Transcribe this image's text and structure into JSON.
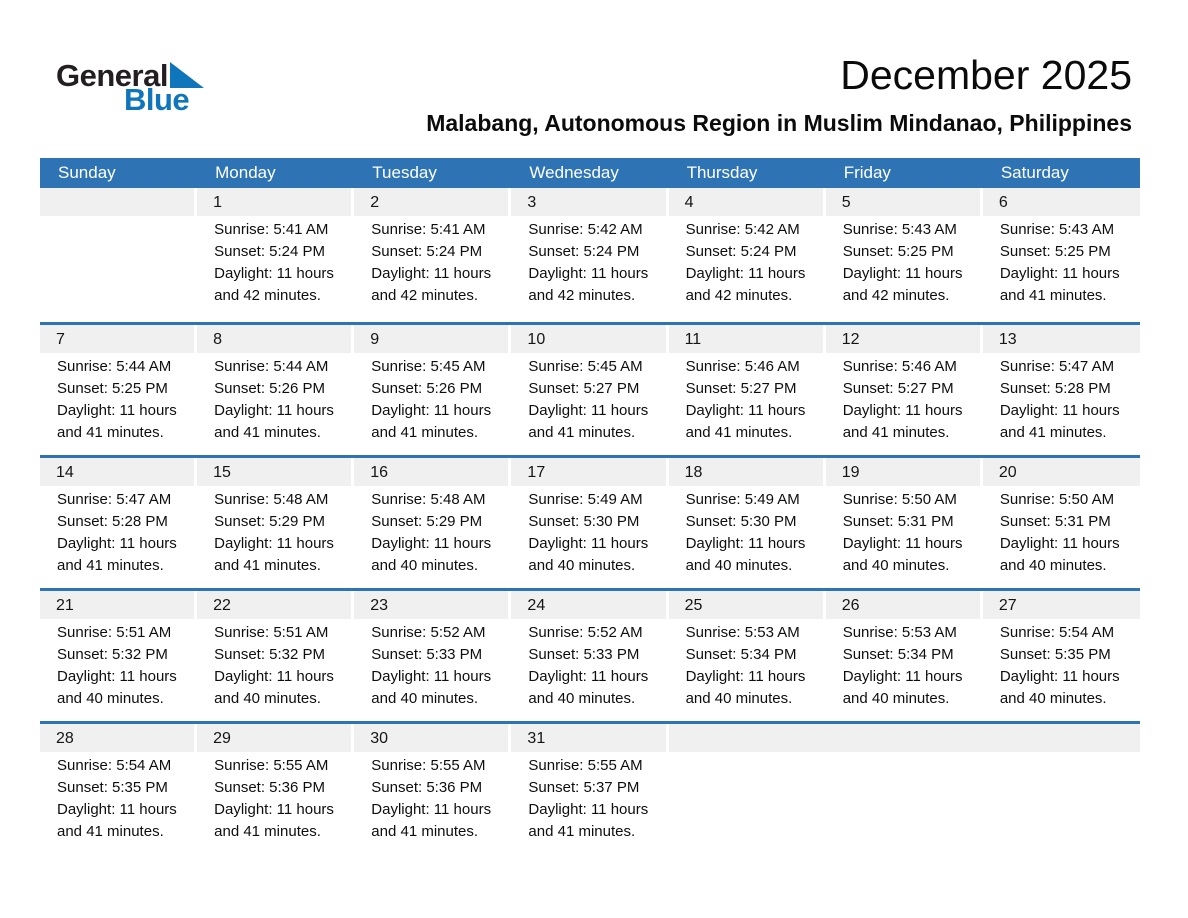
{
  "logo": {
    "general": "General",
    "blue": "Blue"
  },
  "title": "December 2025",
  "subtitle": "Malabang, Autonomous Region in Muslim Mindanao, Philippines",
  "day_headers": [
    "Sunday",
    "Monday",
    "Tuesday",
    "Wednesday",
    "Thursday",
    "Friday",
    "Saturday"
  ],
  "colors": {
    "header_blue": "#2E74B5",
    "band_gray": "#F0F0F0",
    "logo_blue": "#1076BC"
  },
  "weeks": [
    {
      "cells": [
        {
          "empty": true,
          "span": 1
        },
        {
          "date": "1",
          "lines": [
            "Sunrise: 5:41 AM",
            "Sunset: 5:24 PM",
            "Daylight: 11 hours",
            "and 42 minutes."
          ]
        },
        {
          "date": "2",
          "lines": [
            "Sunrise: 5:41 AM",
            "Sunset: 5:24 PM",
            "Daylight: 11 hours",
            "and 42 minutes."
          ]
        },
        {
          "date": "3",
          "lines": [
            "Sunrise: 5:42 AM",
            "Sunset: 5:24 PM",
            "Daylight: 11 hours",
            "and 42 minutes."
          ]
        },
        {
          "date": "4",
          "lines": [
            "Sunrise: 5:42 AM",
            "Sunset: 5:24 PM",
            "Daylight: 11 hours",
            "and 42 minutes."
          ]
        },
        {
          "date": "5",
          "lines": [
            "Sunrise: 5:43 AM",
            "Sunset: 5:25 PM",
            "Daylight: 11 hours",
            "and 42 minutes."
          ]
        },
        {
          "date": "6",
          "lines": [
            "Sunrise: 5:43 AM",
            "Sunset: 5:25 PM",
            "Daylight: 11 hours",
            "and 41 minutes."
          ]
        }
      ]
    },
    {
      "cells": [
        {
          "date": "7",
          "lines": [
            "Sunrise: 5:44 AM",
            "Sunset: 5:25 PM",
            "Daylight: 11 hours",
            "and 41 minutes."
          ]
        },
        {
          "date": "8",
          "lines": [
            "Sunrise: 5:44 AM",
            "Sunset: 5:26 PM",
            "Daylight: 11 hours",
            "and 41 minutes."
          ]
        },
        {
          "date": "9",
          "lines": [
            "Sunrise: 5:45 AM",
            "Sunset: 5:26 PM",
            "Daylight: 11 hours",
            "and 41 minutes."
          ]
        },
        {
          "date": "10",
          "lines": [
            "Sunrise: 5:45 AM",
            "Sunset: 5:27 PM",
            "Daylight: 11 hours",
            "and 41 minutes."
          ]
        },
        {
          "date": "11",
          "lines": [
            "Sunrise: 5:46 AM",
            "Sunset: 5:27 PM",
            "Daylight: 11 hours",
            "and 41 minutes."
          ]
        },
        {
          "date": "12",
          "lines": [
            "Sunrise: 5:46 AM",
            "Sunset: 5:27 PM",
            "Daylight: 11 hours",
            "and 41 minutes."
          ]
        },
        {
          "date": "13",
          "lines": [
            "Sunrise: 5:47 AM",
            "Sunset: 5:28 PM",
            "Daylight: 11 hours",
            "and 41 minutes."
          ]
        }
      ]
    },
    {
      "cells": [
        {
          "date": "14",
          "lines": [
            "Sunrise: 5:47 AM",
            "Sunset: 5:28 PM",
            "Daylight: 11 hours",
            "and 41 minutes."
          ]
        },
        {
          "date": "15",
          "lines": [
            "Sunrise: 5:48 AM",
            "Sunset: 5:29 PM",
            "Daylight: 11 hours",
            "and 41 minutes."
          ]
        },
        {
          "date": "16",
          "lines": [
            "Sunrise: 5:48 AM",
            "Sunset: 5:29 PM",
            "Daylight: 11 hours",
            "and 40 minutes."
          ]
        },
        {
          "date": "17",
          "lines": [
            "Sunrise: 5:49 AM",
            "Sunset: 5:30 PM",
            "Daylight: 11 hours",
            "and 40 minutes."
          ]
        },
        {
          "date": "18",
          "lines": [
            "Sunrise: 5:49 AM",
            "Sunset: 5:30 PM",
            "Daylight: 11 hours",
            "and 40 minutes."
          ]
        },
        {
          "date": "19",
          "lines": [
            "Sunrise: 5:50 AM",
            "Sunset: 5:31 PM",
            "Daylight: 11 hours",
            "and 40 minutes."
          ]
        },
        {
          "date": "20",
          "lines": [
            "Sunrise: 5:50 AM",
            "Sunset: 5:31 PM",
            "Daylight: 11 hours",
            "and 40 minutes."
          ]
        }
      ]
    },
    {
      "cells": [
        {
          "date": "21",
          "lines": [
            "Sunrise: 5:51 AM",
            "Sunset: 5:32 PM",
            "Daylight: 11 hours",
            "and 40 minutes."
          ]
        },
        {
          "date": "22",
          "lines": [
            "Sunrise: 5:51 AM",
            "Sunset: 5:32 PM",
            "Daylight: 11 hours",
            "and 40 minutes."
          ]
        },
        {
          "date": "23",
          "lines": [
            "Sunrise: 5:52 AM",
            "Sunset: 5:33 PM",
            "Daylight: 11 hours",
            "and 40 minutes."
          ]
        },
        {
          "date": "24",
          "lines": [
            "Sunrise: 5:52 AM",
            "Sunset: 5:33 PM",
            "Daylight: 11 hours",
            "and 40 minutes."
          ]
        },
        {
          "date": "25",
          "lines": [
            "Sunrise: 5:53 AM",
            "Sunset: 5:34 PM",
            "Daylight: 11 hours",
            "and 40 minutes."
          ]
        },
        {
          "date": "26",
          "lines": [
            "Sunrise: 5:53 AM",
            "Sunset: 5:34 PM",
            "Daylight: 11 hours",
            "and 40 minutes."
          ]
        },
        {
          "date": "27",
          "lines": [
            "Sunrise: 5:54 AM",
            "Sunset: 5:35 PM",
            "Daylight: 11 hours",
            "and 40 minutes."
          ]
        }
      ]
    },
    {
      "cells": [
        {
          "date": "28",
          "lines": [
            "Sunrise: 5:54 AM",
            "Sunset: 5:35 PM",
            "Daylight: 11 hours",
            "and 41 minutes."
          ]
        },
        {
          "date": "29",
          "lines": [
            "Sunrise: 5:55 AM",
            "Sunset: 5:36 PM",
            "Daylight: 11 hours",
            "and 41 minutes."
          ]
        },
        {
          "date": "30",
          "lines": [
            "Sunrise: 5:55 AM",
            "Sunset: 5:36 PM",
            "Daylight: 11 hours",
            "and 41 minutes."
          ]
        },
        {
          "date": "31",
          "lines": [
            "Sunrise: 5:55 AM",
            "Sunset: 5:37 PM",
            "Daylight: 11 hours",
            "and 41 minutes."
          ]
        },
        {
          "empty": true,
          "span": 3
        }
      ]
    }
  ]
}
